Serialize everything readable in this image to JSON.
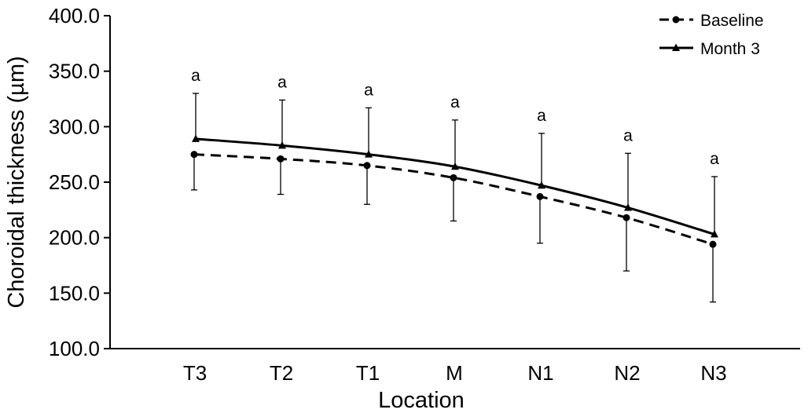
{
  "chart_data": {
    "type": "line",
    "xlabel": "Location",
    "ylabel": "Choroidal thickness (µm)",
    "categories": [
      "T3",
      "T2",
      "T1",
      "M",
      "N1",
      "N2",
      "N3"
    ],
    "ylim": [
      100,
      400
    ],
    "yticks": [
      "100.0",
      "150.0",
      "200.0",
      "250.0",
      "300.0",
      "350.0",
      "400.0"
    ],
    "grid": false,
    "legend_position": "top-right",
    "series": [
      {
        "name": "Baseline",
        "line_style": "dashed",
        "marker": "circle",
        "color": "#000000",
        "values": [
          275,
          271,
          265,
          254,
          237,
          218,
          194
        ],
        "error_bar": [
          32,
          32,
          35,
          39,
          42,
          48,
          52
        ]
      },
      {
        "name": "Month 3",
        "line_style": "solid",
        "marker": "triangle",
        "color": "#000000",
        "values": [
          289,
          283,
          275,
          264,
          247,
          227,
          203
        ],
        "error_bar": [
          41,
          41,
          42,
          42,
          47,
          49,
          52
        ]
      }
    ],
    "annotations": [
      "a",
      "a",
      "a",
      "a",
      "a",
      "a",
      "a"
    ]
  }
}
